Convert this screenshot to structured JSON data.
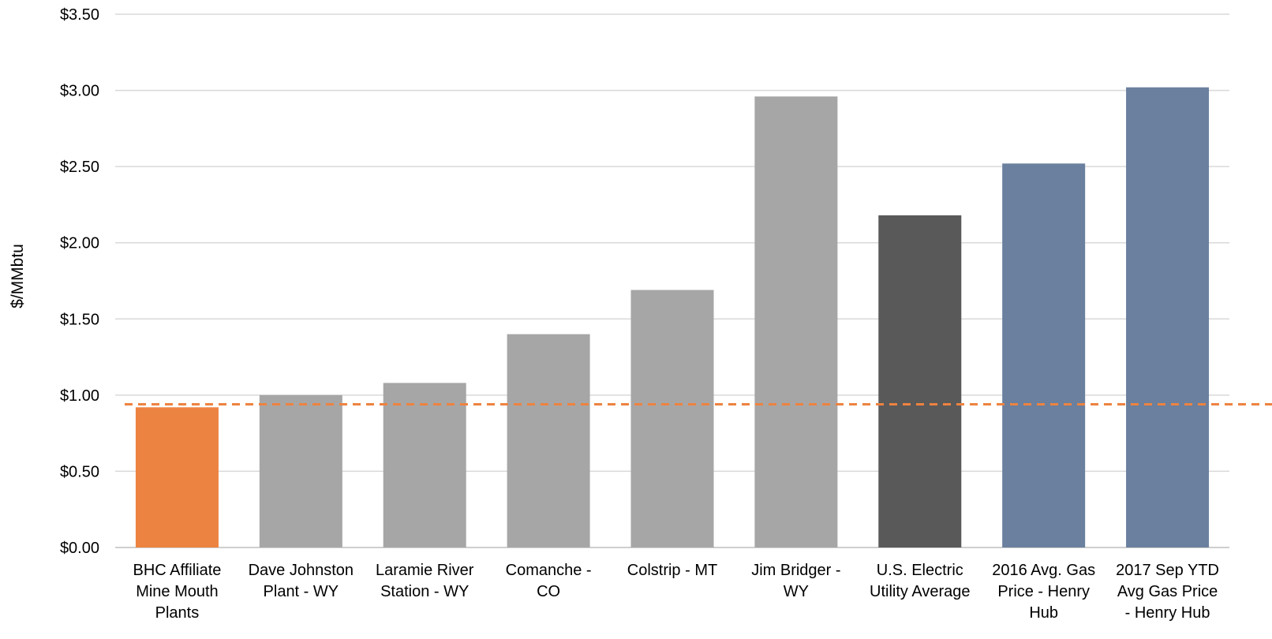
{
  "chart_data": {
    "type": "bar",
    "title": "",
    "xlabel": "",
    "ylabel": "$/MMbtu",
    "ylim": [
      0,
      3.5
    ],
    "yticks": [
      "$0.00",
      "$0.50",
      "$1.00",
      "$1.50",
      "$2.00",
      "$2.50",
      "$3.00",
      "$3.50"
    ],
    "ytick_values": [
      0,
      0.5,
      1.0,
      1.5,
      2.0,
      2.5,
      3.0,
      3.5
    ],
    "grid": true,
    "legend": "none",
    "categories": [
      [
        "BHC Affiliate",
        "Mine Mouth",
        "Plants"
      ],
      [
        "Dave Johnston",
        "Plant - WY"
      ],
      [
        "Laramie River",
        "Station - WY"
      ],
      [
        "Comanche -",
        "CO"
      ],
      [
        "Colstrip - MT"
      ],
      [
        "Jim Bridger -",
        "WY"
      ],
      [
        "U.S. Electric",
        "Utility Average"
      ],
      [
        "2016 Avg. Gas",
        "Price - Henry",
        "Hub"
      ],
      [
        "2017 Sep YTD",
        "Avg Gas Price",
        "- Henry Hub"
      ]
    ],
    "values": [
      0.92,
      1.0,
      1.08,
      1.4,
      1.69,
      2.96,
      2.18,
      2.52,
      3.02
    ],
    "bar_colors": [
      "#ED8340",
      "#A6A6A6",
      "#A6A6A6",
      "#A6A6A6",
      "#A6A6A6",
      "#A6A6A6",
      "#595959",
      "#6A809E",
      "#6A809E"
    ],
    "reference_line": {
      "value": 0.94,
      "style": "dashed",
      "color": "#ED8340"
    },
    "grid_color": "#D9D9D9",
    "axis_color": "#BFBFBF"
  }
}
